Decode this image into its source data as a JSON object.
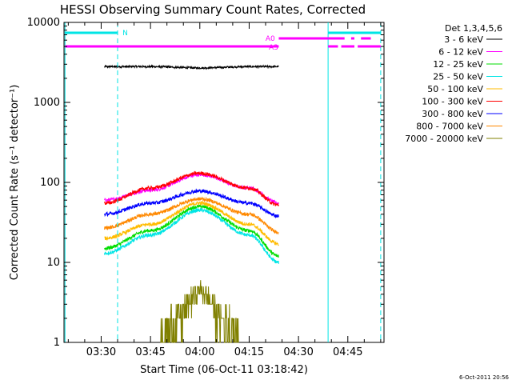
{
  "chart_data": {
    "type": "line",
    "title": "HESSI Observing Summary Count Rates, Corrected",
    "xlabel": "Start Time (06-Oct-11 03:18:42)",
    "ylabel": "Corrected Count Rate (s⁻¹ detector⁻¹)",
    "y_scale": "log",
    "ylim": [
      1,
      10000
    ],
    "xlim": [
      "03:18:42",
      "04:56:00"
    ],
    "y_ticks": [
      "1",
      "10",
      "100",
      "1000",
      "10000"
    ],
    "x_ticks": [
      "03:30",
      "03:45",
      "04:00",
      "04:15",
      "04:30",
      "04:45"
    ],
    "legend_title": "Det 1,3,4,5,6",
    "legend_position": "right",
    "footer_date": "6-Oct-2011 20:56",
    "series": [
      {
        "name": "3 - 6 keV",
        "color": "#000000",
        "x": [
          "03:31",
          "03:45",
          "04:00",
          "04:15",
          "04:24"
        ],
        "y": [
          2800,
          2800,
          2700,
          2800,
          2800
        ]
      },
      {
        "name": "6 - 12 keV",
        "color": "#ff00ff",
        "x": [
          "03:31",
          "03:45",
          "04:00",
          "04:15",
          "04:24"
        ],
        "y": [
          60,
          80,
          125,
          85,
          55
        ]
      },
      {
        "name": "12 - 25 keV",
        "color": "#00dd00",
        "x": [
          "03:31",
          "03:45",
          "04:00",
          "04:15",
          "04:24"
        ],
        "y": [
          15,
          25,
          50,
          25,
          12
        ]
      },
      {
        "name": "25 - 50 keV",
        "color": "#00e5e5",
        "x": [
          "03:31",
          "03:45",
          "04:00",
          "04:15",
          "04:24"
        ],
        "y": [
          13,
          22,
          45,
          22,
          10
        ]
      },
      {
        "name": "50 - 100 keV",
        "color": "#ffbb00",
        "x": [
          "03:31",
          "03:45",
          "04:00",
          "04:15",
          "04:24"
        ],
        "y": [
          20,
          30,
          55,
          30,
          17
        ]
      },
      {
        "name": "100 - 300 keV",
        "color": "#ff0000",
        "x": [
          "03:31",
          "03:45",
          "04:00",
          "04:15",
          "04:24"
        ],
        "y": [
          55,
          85,
          130,
          85,
          52
        ]
      },
      {
        "name": "300 - 800 keV",
        "color": "#0000ff",
        "x": [
          "03:31",
          "03:45",
          "04:00",
          "04:15",
          "04:24"
        ],
        "y": [
          40,
          55,
          78,
          55,
          38
        ]
      },
      {
        "name": "800 - 7000 keV",
        "color": "#ff8800",
        "x": [
          "03:31",
          "03:45",
          "04:00",
          "04:15",
          "04:24"
        ],
        "y": [
          27,
          40,
          62,
          40,
          24
        ]
      },
      {
        "name": "7000 - 20000 keV",
        "color": "#808000",
        "x": [
          "03:48",
          "03:53",
          "04:00",
          "04:07",
          "04:12"
        ],
        "y": [
          1.2,
          2,
          4.5,
          2,
          1.2
        ]
      }
    ],
    "annotations": [
      {
        "label": "N",
        "color": "#00e5e5"
      },
      {
        "label": "A0",
        "color": "#ff00ff"
      },
      {
        "label": "A3",
        "color": "#ff00ff"
      }
    ]
  }
}
